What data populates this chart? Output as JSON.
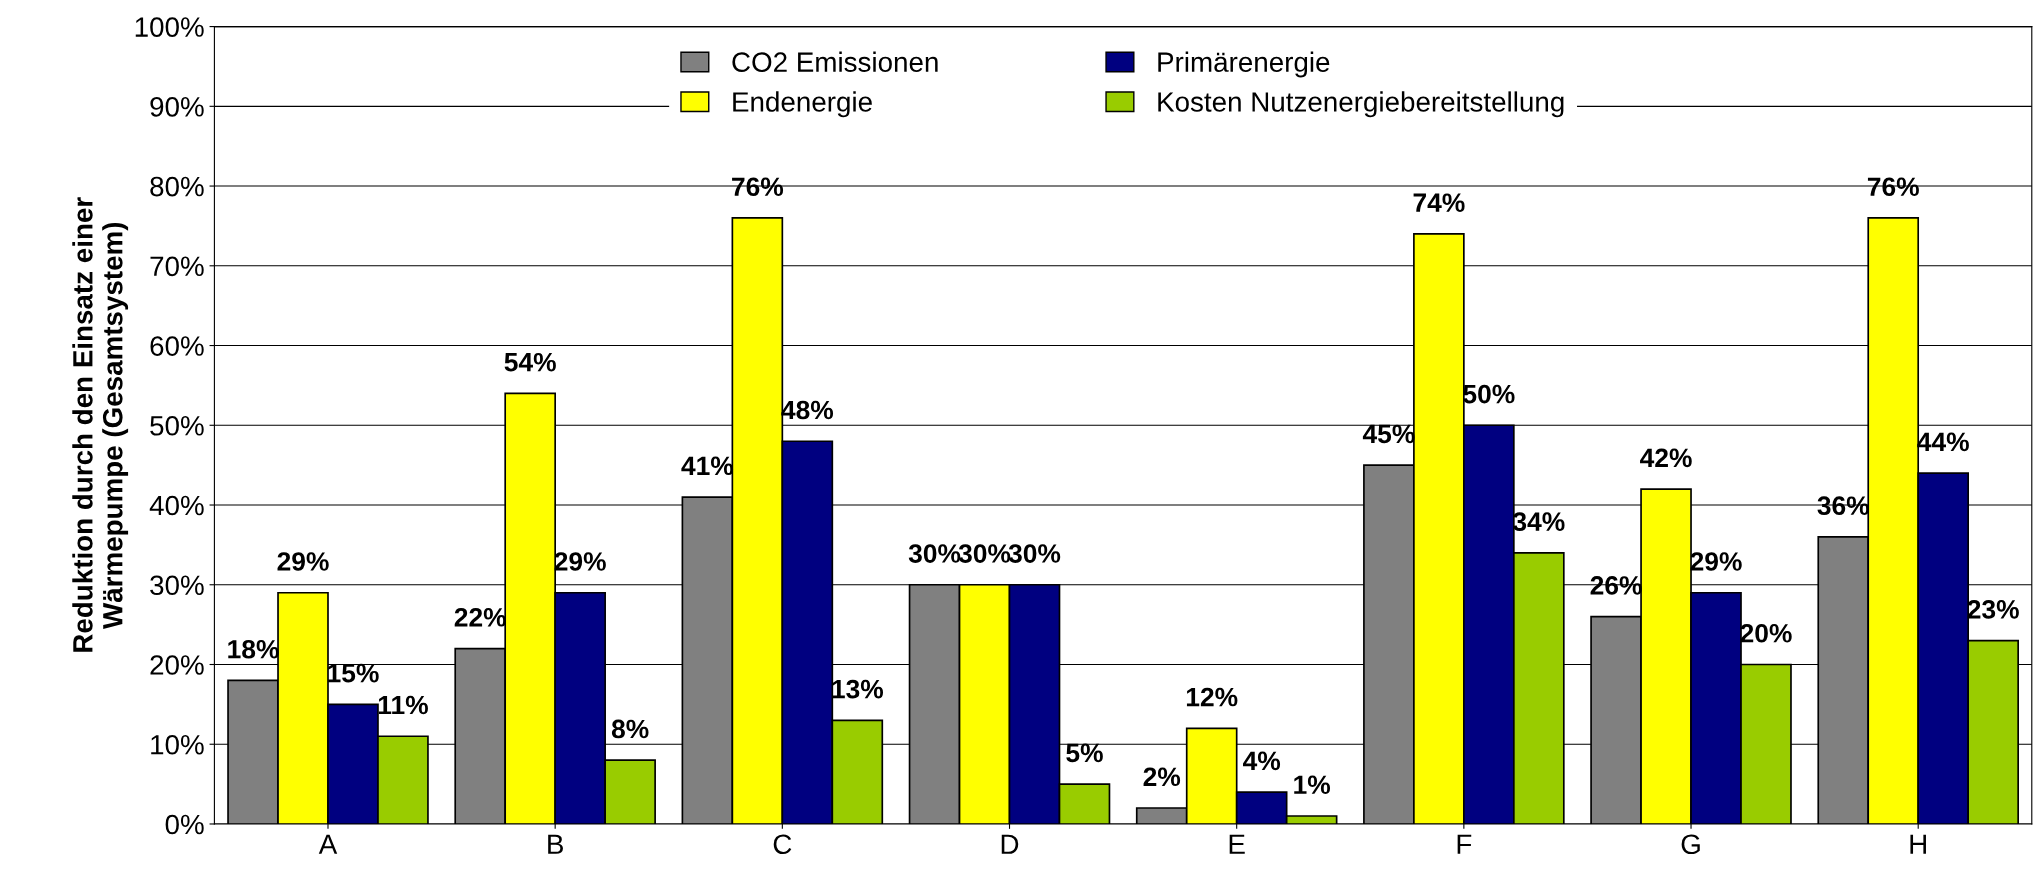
{
  "chart_data": {
    "type": "bar",
    "ylabel": "Reduktion durch den Einsatz einer\nWärmepumpe (Gesamtsystem)",
    "categories": [
      "A",
      "B",
      "C",
      "D",
      "E",
      "F",
      "G",
      "H"
    ],
    "series": [
      {
        "name": "CO2 Emissionen",
        "color": "#808080",
        "values": [
          18,
          22,
          41,
          30,
          2,
          45,
          26,
          36
        ],
        "value_labels": [
          "18%",
          "22%",
          "41%",
          "30%",
          "2%",
          "45%",
          "26%",
          "36%"
        ]
      },
      {
        "name": "Endenergie",
        "color": "#ffff00",
        "values": [
          29,
          54,
          76,
          30,
          12,
          74,
          42,
          76
        ],
        "value_labels": [
          "29%",
          "54%",
          "76%",
          "30%",
          "12%",
          "74%",
          "42%",
          "76%"
        ]
      },
      {
        "name": "Primärenergie",
        "color": "#000080",
        "values": [
          15,
          29,
          48,
          30,
          4,
          50,
          29,
          44
        ],
        "value_labels": [
          "15%",
          "29%",
          "48%",
          "30%",
          "4%",
          "50%",
          "29%",
          "44%"
        ]
      },
      {
        "name": "Kosten Nutzenergiebereitstellung",
        "color": "#99cc00",
        "values": [
          11,
          8,
          13,
          5,
          1,
          34,
          20,
          23
        ],
        "value_labels": [
          "11%",
          "8%",
          "13%",
          "5%",
          "1%",
          "34%",
          "20%",
          "23%"
        ]
      }
    ],
    "ylim": [
      0,
      100
    ],
    "yticks": [
      {
        "value": 0,
        "label": "0%"
      },
      {
        "value": 10,
        "label": "10%"
      },
      {
        "value": 20,
        "label": "20%"
      },
      {
        "value": 30,
        "label": "30%"
      },
      {
        "value": 40,
        "label": "40%"
      },
      {
        "value": 50,
        "label": "50%"
      },
      {
        "value": 60,
        "label": "60%"
      },
      {
        "value": 70,
        "label": "70%"
      },
      {
        "value": 80,
        "label": "80%"
      },
      {
        "value": 90,
        "label": "90%"
      },
      {
        "value": 100,
        "label": "100%"
      }
    ],
    "grid": "y",
    "legend": "top"
  }
}
